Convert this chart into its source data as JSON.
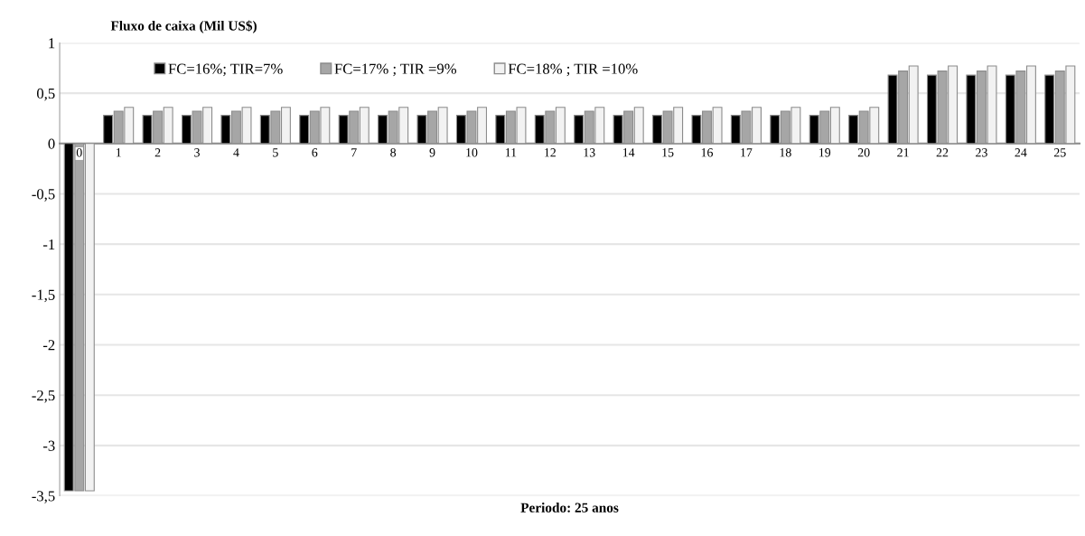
{
  "chart_data": {
    "type": "bar",
    "title": "Fluxo de caixa (Mil US$)",
    "xlabel": "Periodo: 25 anos",
    "categories": [
      "0",
      "1",
      "2",
      "3",
      "4",
      "5",
      "6",
      "7",
      "8",
      "9",
      "10",
      "11",
      "12",
      "13",
      "14",
      "15",
      "16",
      "17",
      "18",
      "19",
      "20",
      "21",
      "22",
      "23",
      "24",
      "25"
    ],
    "series": [
      {
        "name": "FC=16%; TIR=7%",
        "color": "#000000",
        "values": [
          -3.45,
          0.28,
          0.28,
          0.28,
          0.28,
          0.28,
          0.28,
          0.28,
          0.28,
          0.28,
          0.28,
          0.28,
          0.28,
          0.28,
          0.28,
          0.28,
          0.28,
          0.28,
          0.28,
          0.28,
          0.28,
          0.68,
          0.68,
          0.68,
          0.68,
          0.68
        ]
      },
      {
        "name": "FC=17% ; TIR =9%",
        "color": "#a6a6a6",
        "values": [
          -3.45,
          0.32,
          0.32,
          0.32,
          0.32,
          0.32,
          0.32,
          0.32,
          0.32,
          0.32,
          0.32,
          0.32,
          0.32,
          0.32,
          0.32,
          0.32,
          0.32,
          0.32,
          0.32,
          0.32,
          0.32,
          0.72,
          0.72,
          0.72,
          0.72,
          0.72
        ]
      },
      {
        "name": "FC=18% ; TIR =10%",
        "color": "#f2f2f2",
        "values": [
          -3.45,
          0.36,
          0.36,
          0.36,
          0.36,
          0.36,
          0.36,
          0.36,
          0.36,
          0.36,
          0.36,
          0.36,
          0.36,
          0.36,
          0.36,
          0.36,
          0.36,
          0.36,
          0.36,
          0.36,
          0.36,
          0.77,
          0.77,
          0.77,
          0.77,
          0.77
        ]
      }
    ],
    "ylim": [
      -3.5,
      1
    ],
    "yticks": [
      {
        "value": -3.5,
        "label": "-3,5"
      },
      -3,
      {
        "value": -2.5,
        "label": "-2,5"
      },
      -2,
      {
        "value": -1.5,
        "label": "-1,5"
      },
      -1,
      {
        "value": -0.5,
        "label": "-0,5"
      },
      0,
      {
        "value": 0.5,
        "label": "0,5"
      },
      1
    ],
    "grid": "y",
    "legend": "top"
  }
}
